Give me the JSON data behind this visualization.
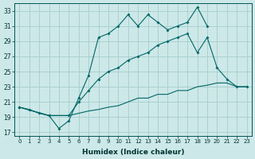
{
  "xlabel": "Humidex (Indice chaleur)",
  "background_color": "#cde8e8",
  "grid_color": "#aad0d0",
  "line_color": "#006666",
  "x_ticks": [
    0,
    1,
    2,
    3,
    4,
    5,
    6,
    7,
    8,
    9,
    10,
    11,
    12,
    13,
    14,
    15,
    16,
    17,
    18,
    19,
    20,
    21,
    22,
    23
  ],
  "y_ticks": [
    17,
    19,
    21,
    23,
    25,
    27,
    29,
    31,
    33
  ],
  "ylim": [
    16.5,
    34.0
  ],
  "xlim": [
    -0.5,
    23.5
  ],
  "series1_zigzag": {
    "x": [
      0,
      1,
      2,
      3,
      4,
      5,
      6,
      7,
      8,
      9,
      10,
      11,
      12,
      13,
      14,
      15,
      16,
      17,
      18,
      19
    ],
    "y": [
      20.3,
      20.0,
      19.5,
      19.2,
      17.5,
      18.5,
      21.5,
      24.5,
      29.5,
      30.0,
      31.0,
      32.5,
      31.0,
      32.5,
      31.5,
      30.5,
      31.0,
      31.5,
      33.5,
      31.0
    ]
  },
  "series2_middle": {
    "x": [
      0,
      3,
      5,
      6,
      7,
      8,
      9,
      10,
      11,
      12,
      13,
      14,
      15,
      16,
      17,
      18,
      19,
      20,
      21,
      22,
      23
    ],
    "y": [
      20.3,
      19.2,
      19.2,
      21.0,
      22.5,
      24.0,
      25.0,
      25.5,
      26.5,
      27.0,
      27.5,
      28.5,
      29.0,
      29.5,
      30.0,
      27.5,
      29.5,
      25.5,
      24.0,
      23.0,
      23.0
    ]
  },
  "series3_lower": {
    "x": [
      0,
      3,
      5,
      6,
      7,
      8,
      9,
      10,
      11,
      12,
      13,
      14,
      15,
      16,
      17,
      18,
      19,
      20,
      21,
      22,
      23
    ],
    "y": [
      20.3,
      19.2,
      19.2,
      19.5,
      19.8,
      20.0,
      20.3,
      20.5,
      21.0,
      21.5,
      21.5,
      22.0,
      22.0,
      22.5,
      22.5,
      23.0,
      23.2,
      23.5,
      23.5,
      23.0,
      23.0
    ]
  }
}
